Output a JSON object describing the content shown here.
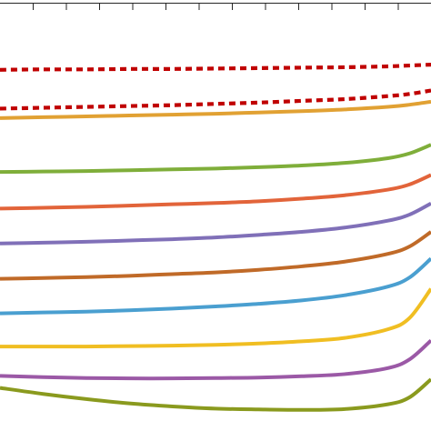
{
  "chart_data": {
    "type": "line",
    "title": "",
    "xlabel": "",
    "ylabel": "",
    "grid": false,
    "legend": "none",
    "xlim": [
      0,
      1
    ],
    "ylim": [
      0,
      1
    ],
    "x": [
      0,
      0.1,
      0.2,
      0.3,
      0.4,
      0.5,
      0.6,
      0.7,
      0.8,
      0.9,
      0.95,
      1.0
    ],
    "series": [
      {
        "color": "#c00000",
        "dashed": true,
        "values": [
          0.838,
          0.839,
          0.839,
          0.84,
          0.84,
          0.841,
          0.842,
          0.843,
          0.844,
          0.846,
          0.848,
          0.85
        ]
      },
      {
        "color": "#c00000",
        "dashed": true,
        "values": [
          0.748,
          0.75,
          0.752,
          0.754,
          0.756,
          0.759,
          0.762,
          0.766,
          0.77,
          0.777,
          0.782,
          0.79
        ]
      },
      {
        "color": "#e1a133",
        "dashed": false,
        "values": [
          0.726,
          0.728,
          0.73,
          0.732,
          0.734,
          0.736,
          0.739,
          0.742,
          0.746,
          0.752,
          0.757,
          0.764
        ]
      },
      {
        "color": "#7fae3a",
        "dashed": false,
        "values": [
          0.601,
          0.602,
          0.603,
          0.605,
          0.607,
          0.609,
          0.612,
          0.616,
          0.622,
          0.633,
          0.644,
          0.664
        ]
      },
      {
        "color": "#e2643a",
        "dashed": false,
        "values": [
          0.516,
          0.518,
          0.52,
          0.523,
          0.526,
          0.529,
          0.533,
          0.539,
          0.547,
          0.56,
          0.572,
          0.594
        ]
      },
      {
        "color": "#8070b8",
        "dashed": false,
        "values": [
          0.435,
          0.437,
          0.439,
          0.442,
          0.445,
          0.449,
          0.455,
          0.462,
          0.472,
          0.488,
          0.502,
          0.528
        ]
      },
      {
        "color": "#c06a28",
        "dashed": false,
        "values": [
          0.353,
          0.355,
          0.357,
          0.36,
          0.364,
          0.368,
          0.374,
          0.382,
          0.393,
          0.411,
          0.428,
          0.462
        ]
      },
      {
        "color": "#4a9fd0",
        "dashed": false,
        "values": [
          0.273,
          0.275,
          0.277,
          0.28,
          0.284,
          0.289,
          0.295,
          0.303,
          0.315,
          0.335,
          0.356,
          0.4
        ]
      },
      {
        "color": "#f0be22",
        "dashed": false,
        "values": [
          0.196,
          0.196,
          0.196,
          0.197,
          0.198,
          0.2,
          0.203,
          0.208,
          0.216,
          0.236,
          0.262,
          0.33
        ]
      },
      {
        "color": "#9b59a6",
        "dashed": false,
        "values": [
          0.128,
          0.125,
          0.123,
          0.122,
          0.122,
          0.123,
          0.124,
          0.127,
          0.132,
          0.146,
          0.166,
          0.21
        ]
      },
      {
        "color": "#8a9a1e",
        "dashed": false,
        "values": [
          0.1,
          0.086,
          0.074,
          0.064,
          0.057,
          0.052,
          0.05,
          0.049,
          0.051,
          0.062,
          0.078,
          0.12
        ]
      }
    ]
  }
}
